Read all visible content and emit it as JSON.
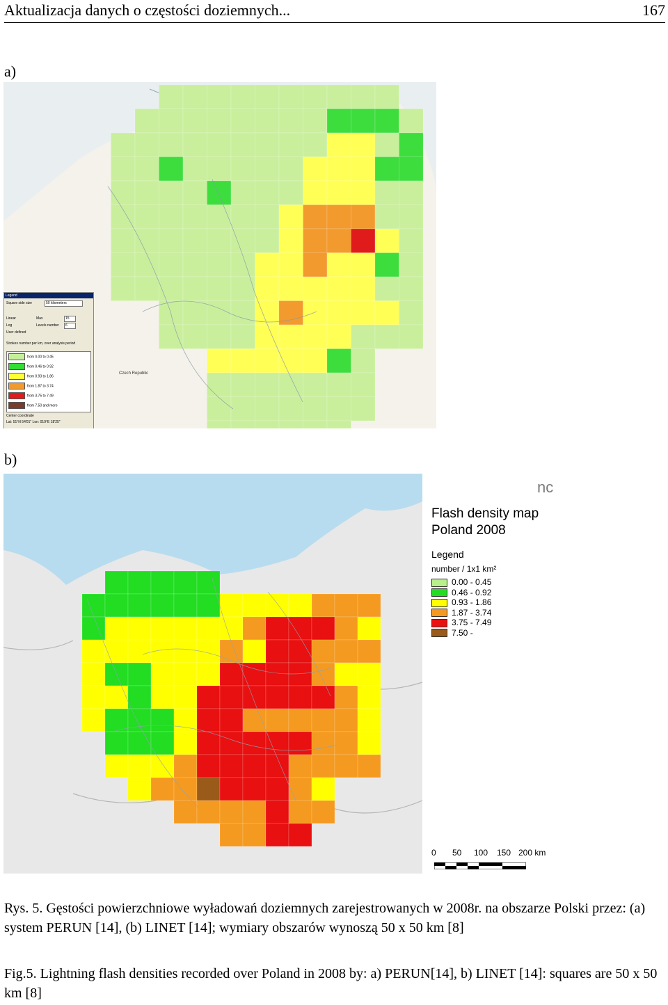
{
  "header": {
    "title": "Aktualizacja danych o częstości doziemnych...",
    "page_number": "167"
  },
  "figure_a": {
    "label": "a)",
    "panel": {
      "title": "Legend",
      "square_side_label": "Square side size",
      "square_side_value": "50 kilometers",
      "scale_options": [
        "Linear",
        "Log",
        "User defined"
      ],
      "max_label": "Max",
      "max_value": "15",
      "levels_label": "Levels number",
      "levels_value": "6",
      "strokes_label": "Strokes number per km, over analysis period",
      "classes": [
        {
          "from": "0.00",
          "to": "0.45",
          "color": "#c6ef9a"
        },
        {
          "from": "0.46",
          "to": "0.92",
          "color": "#33dd33"
        },
        {
          "from": "0.93",
          "to": "1.86",
          "color": "#ffff33"
        },
        {
          "from": "1.87",
          "to": "3.74",
          "color": "#f29a2e"
        },
        {
          "from": "3.75",
          "to": "7.49",
          "color": "#e01b1b"
        },
        {
          "from": "7.50",
          "to": "and more",
          "color": "#7b3b2a"
        }
      ],
      "from_word": "from",
      "to_word": "to",
      "center_label": "Center coordinate",
      "center_value": "Lat: 51°N 54'01\" Lon: 019°E 18'25\""
    },
    "place_label": "Czech Republic"
  },
  "figure_b": {
    "label": "b)",
    "logo_fragment": "nc",
    "map_title_line1": "Flash density map",
    "map_title_line2": "Poland 2008",
    "legend_title": "Legend",
    "legend_units": "number / 1x1 km²",
    "classes": [
      {
        "range": "0.00 - 0.45",
        "color": "#b8f08a"
      },
      {
        "range": "0.46 - 0.92",
        "color": "#22dd22"
      },
      {
        "range": "0.93 - 1.86",
        "color": "#ffff00"
      },
      {
        "range": "1.87 - 3.74",
        "color": "#f59a20"
      },
      {
        "range": "3.75 - 7.49",
        "color": "#e81010"
      },
      {
        "range": "7.50 -",
        "color": "#9a5a1a"
      }
    ],
    "scale_labels": [
      "0",
      "50",
      "100",
      "150",
      "200 km"
    ]
  },
  "captions": {
    "polish": "Rys. 5. Gęstości powierzchniowe wyładowań doziemnych zarejestrowanych w 2008r. na obszarze Polski przez: (a) system PERUN [14], (b) LINET [14]; wymiary obszarów wynoszą 50 x 50 km [8]",
    "english": "Fig.5. Lightning flash densities recorded over Poland in 2008 by: a) PERUN[14], b) LINET [14]: squares are 50 x 50 km [8]"
  }
}
